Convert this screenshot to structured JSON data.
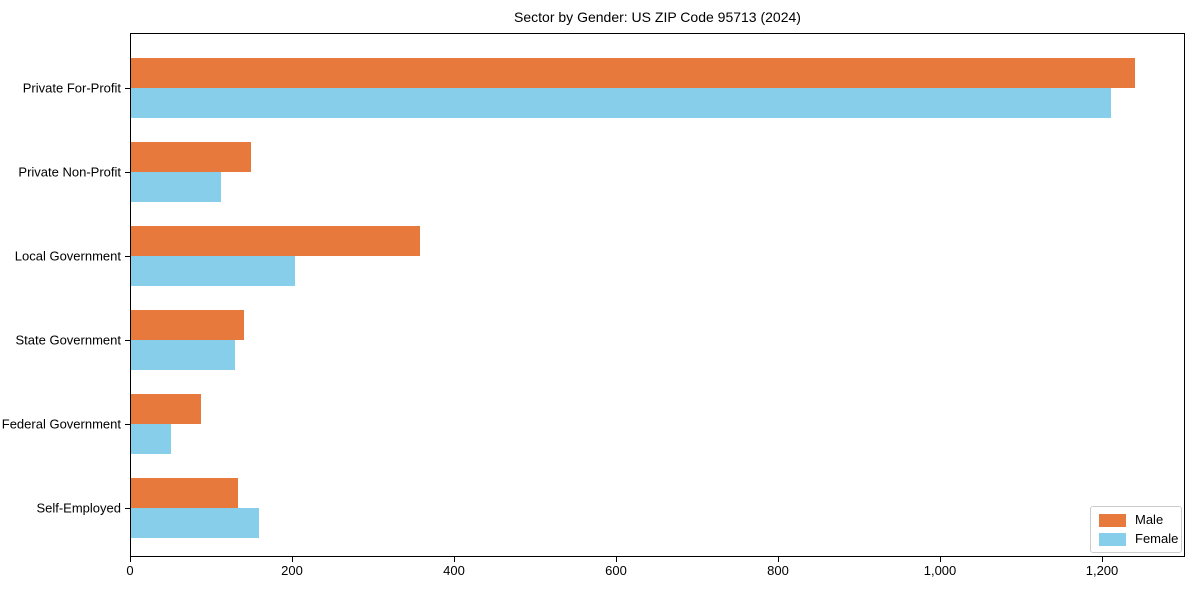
{
  "title": "Sector by Gender: US ZIP Code 95713 (2024)",
  "chart_data": {
    "type": "bar",
    "orientation": "horizontal",
    "title": "Sector by Gender: US ZIP Code 95713 (2024)",
    "xlabel": "",
    "ylabel": "",
    "categories": [
      "Private For-Profit",
      "Private Non-Profit",
      "Local Government",
      "State Government",
      "Federal Government",
      "Self-Employed"
    ],
    "series": [
      {
        "name": "Male",
        "color": "#E8793D",
        "values": [
          1240,
          148,
          357,
          139,
          87,
          132
        ]
      },
      {
        "name": "Female",
        "color": "#87CEEB",
        "values": [
          1210,
          111,
          203,
          129,
          49,
          158
        ]
      }
    ],
    "xlim": [
      0,
      1300
    ],
    "x_ticks": [
      {
        "value": 0,
        "label": "0"
      },
      {
        "value": 200,
        "label": "200"
      },
      {
        "value": 400,
        "label": "400"
      },
      {
        "value": 600,
        "label": "600"
      },
      {
        "value": 800,
        "label": "800"
      },
      {
        "value": 1000,
        "label": "1,000"
      },
      {
        "value": 1200,
        "label": "1,200"
      }
    ],
    "grid": false,
    "legend": {
      "position": "lower right",
      "entries": [
        "Male",
        "Female"
      ]
    }
  }
}
